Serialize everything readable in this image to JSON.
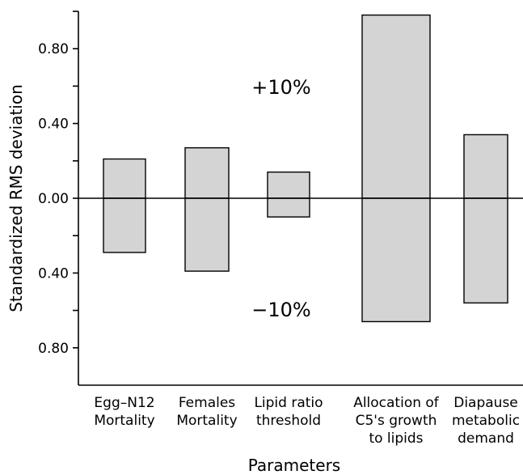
{
  "chart_data": {
    "type": "bar",
    "xlabel": "Parameters",
    "ylabel": "Standardized RMS deviation",
    "ylim": [
      -1.0,
      1.0
    ],
    "y_ticks": [
      {
        "value": 0.8,
        "label": "0.80"
      },
      {
        "value": 0.6,
        "label": ""
      },
      {
        "value": 0.4,
        "label": "0.40"
      },
      {
        "value": 0.2,
        "label": ""
      },
      {
        "value": 0.0,
        "label": "0.00"
      },
      {
        "value": -0.2,
        "label": ""
      },
      {
        "value": -0.4,
        "label": "0.40"
      },
      {
        "value": -0.6,
        "label": ""
      },
      {
        "value": -0.8,
        "label": "0.80"
      }
    ],
    "categories": [
      [
        "Egg–N12",
        "Mortality"
      ],
      [
        "Females",
        "Mortality"
      ],
      [
        "Lipid ratio",
        "threshold"
      ],
      [
        "Allocation of",
        "C5's growth",
        "to lipids"
      ],
      [
        "Diapause",
        "metabolic",
        "demand"
      ]
    ],
    "series": [
      {
        "name": "+10%",
        "values": [
          0.21,
          0.27,
          0.14,
          0.98,
          0.34
        ]
      },
      {
        "name": "−10%",
        "values": [
          -0.29,
          -0.39,
          -0.1,
          -0.66,
          -0.56
        ]
      }
    ],
    "annotations": [
      "+10%",
      "−10%"
    ],
    "bar_color": "#d4d4d4",
    "grid": false
  }
}
